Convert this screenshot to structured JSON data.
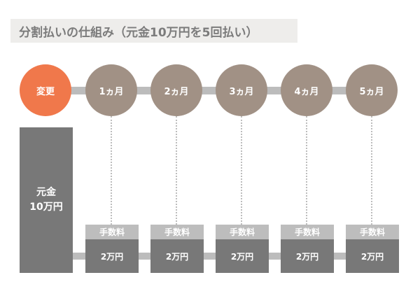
{
  "title": "分割払いの仕組み（元金10万円を5回払い）",
  "start_label": "変更",
  "months": [
    {
      "label": "1ヵ月",
      "fee": "手数料",
      "amount": "2万円"
    },
    {
      "label": "2ヵ月",
      "fee": "手数料",
      "amount": "2万円"
    },
    {
      "label": "3ヵ月",
      "fee": "手数料",
      "amount": "2万円"
    },
    {
      "label": "4ヵ月",
      "fee": "手数料",
      "amount": "2万円"
    },
    {
      "label": "5ヵ月",
      "fee": "手数料",
      "amount": "2万円"
    }
  ],
  "principal": {
    "line1": "元金",
    "line2": "10万円"
  },
  "colors": {
    "start_circle": "#f0784b",
    "month_circle": "#a19185",
    "principal_block": "#787878",
    "fee_block": "#bdbdbd",
    "payment_block": "#787878",
    "title_background": "#eeedeb"
  }
}
